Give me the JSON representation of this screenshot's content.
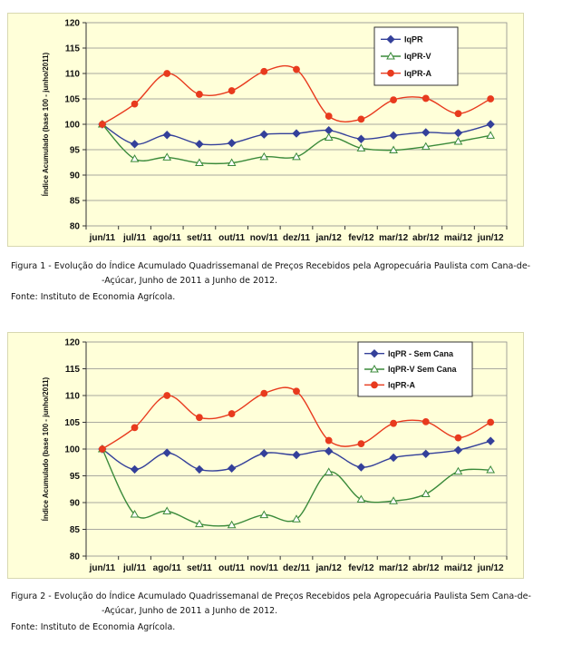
{
  "chart_data": [
    {
      "type": "line",
      "ylabel": "Índice Acumulado (base 100 - junho/2011)",
      "ylim": [
        80,
        120
      ],
      "yticks": [
        80,
        85,
        90,
        95,
        100,
        105,
        110,
        115,
        120
      ],
      "categories": [
        "jun/11",
        "jul/11",
        "ago/11",
        "set/11",
        "out/11",
        "nov/11",
        "dez/11",
        "jan/12",
        "fev/12",
        "mar/12",
        "abr/12",
        "mai/12",
        "jun/12"
      ],
      "legend_position": "top-right",
      "series": [
        {
          "name": "IqPR",
          "color": "#34409a",
          "marker": "diamond",
          "values": [
            100,
            96.1,
            97.9,
            96.1,
            96.3,
            98.0,
            98.2,
            98.8,
            97.1,
            97.8,
            98.4,
            98.3,
            100.0
          ]
        },
        {
          "name": "IqPR-V",
          "color": "#3a8a3a",
          "marker": "triangle",
          "values": [
            100,
            93.2,
            93.5,
            92.4,
            92.4,
            93.6,
            93.6,
            97.4,
            95.3,
            94.9,
            95.6,
            96.6,
            97.8
          ]
        },
        {
          "name": "IqPR-A",
          "color": "#e83a1e",
          "marker": "circle",
          "values": [
            100,
            104.0,
            110.0,
            105.9,
            106.6,
            110.4,
            110.8,
            101.6,
            101.0,
            104.8,
            105.1,
            102.1,
            105.0
          ]
        }
      ]
    },
    {
      "type": "line",
      "ylabel": "Índice Acumulado (base 100 - junho/2011)",
      "ylim": [
        80,
        120
      ],
      "yticks": [
        80,
        85,
        90,
        95,
        100,
        105,
        110,
        115,
        120
      ],
      "categories": [
        "jun/11",
        "jul/11",
        "ago/11",
        "set/11",
        "out/11",
        "nov/11",
        "dez/11",
        "jan/12",
        "fev/12",
        "mar/12",
        "abr/12",
        "mai/12",
        "jun/12"
      ],
      "legend_position": "top-right",
      "series": [
        {
          "name": "IqPR - Sem Cana",
          "color": "#34409a",
          "marker": "diamond",
          "values": [
            100,
            96.2,
            99.3,
            96.2,
            96.4,
            99.2,
            98.9,
            99.6,
            96.6,
            98.4,
            99.1,
            99.8,
            101.5
          ]
        },
        {
          "name": "IqPR-V Sem Cana",
          "color": "#3a8a3a",
          "marker": "triangle",
          "values": [
            100,
            87.8,
            88.4,
            86.0,
            85.8,
            87.7,
            86.9,
            95.7,
            90.6,
            90.3,
            91.6,
            95.8,
            96.1
          ]
        },
        {
          "name": "IqPR-A",
          "color": "#e83a1e",
          "marker": "circle",
          "values": [
            100,
            104.0,
            110.0,
            105.9,
            106.6,
            110.4,
            110.8,
            101.6,
            101.0,
            104.8,
            105.1,
            102.1,
            105.0
          ]
        }
      ]
    }
  ],
  "captions": [
    {
      "line1": "Figura 1 - Evolução do Índice Acumulado Quadrissemanal de Preços Recebidos pela Agropecuária Paulista com Cana-de-",
      "line2": "-Açúcar, Junho de 2011 a Junho de 2012.",
      "source": "Fonte: Instituto de Economia Agrícola."
    },
    {
      "line1": "Figura 2 - Evolução do Índice Acumulado Quadrissemanal de Preços Recebidos pela Agropecuária Paulista Sem Cana-de-",
      "line2": "-Açúcar, Junho de 2011 a Junho de 2012.",
      "source": "Fonte: Instituto de Economia Agrícola."
    }
  ]
}
